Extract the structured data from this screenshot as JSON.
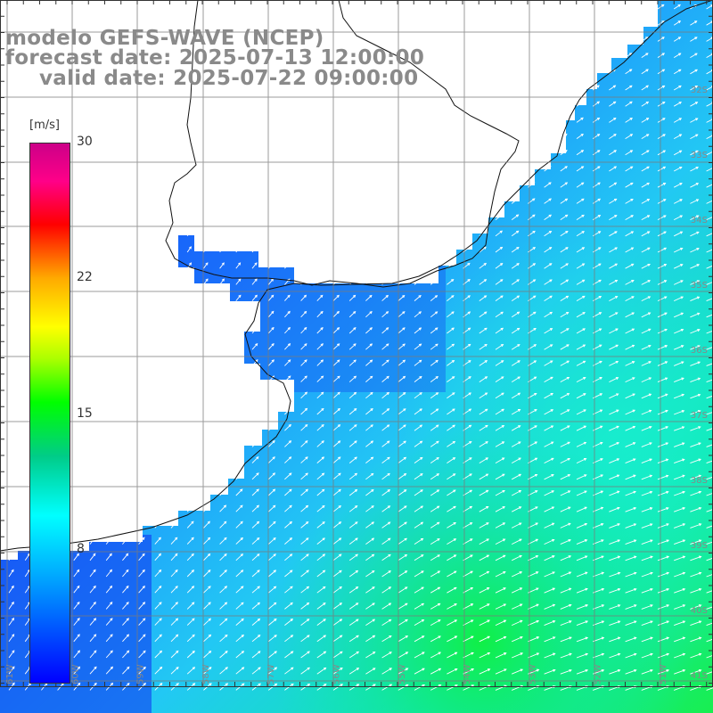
{
  "title": {
    "line1": "modelo GEFS-WAVE (NCEP)",
    "line2": "forecast date: 2025-07-13 12:00:00",
    "line3": "valid date: 2025-07-22 09:00:00"
  },
  "colorbar": {
    "unit": "[m/s]",
    "min": 0,
    "max": 30,
    "tick_labels": [
      "30",
      "22",
      "15",
      "8"
    ],
    "tick_values": [
      30,
      22,
      15,
      8
    ],
    "colors": [
      "#0000ff",
      "#00aaff",
      "#00ffff",
      "#00cc88",
      "#00ff00",
      "#aaff00",
      "#ffff00",
      "#ffaa00",
      "#ff0000",
      "#ff0088",
      "#cc0088"
    ]
  },
  "map": {
    "variable": "wind speed and direction",
    "lon_labels": [
      "61W",
      "60W",
      "59W",
      "58W",
      "57W",
      "56W",
      "55W",
      "54W",
      "53W",
      "52W",
      "51W"
    ],
    "lat_labels": [
      "32S",
      "33S",
      "34S",
      "35S",
      "36S",
      "37S",
      "38S",
      "39S",
      "40S",
      "41S"
    ],
    "land_color": "#ffffff",
    "grid_color": "#888888",
    "arrow_color": "#ffffff"
  }
}
